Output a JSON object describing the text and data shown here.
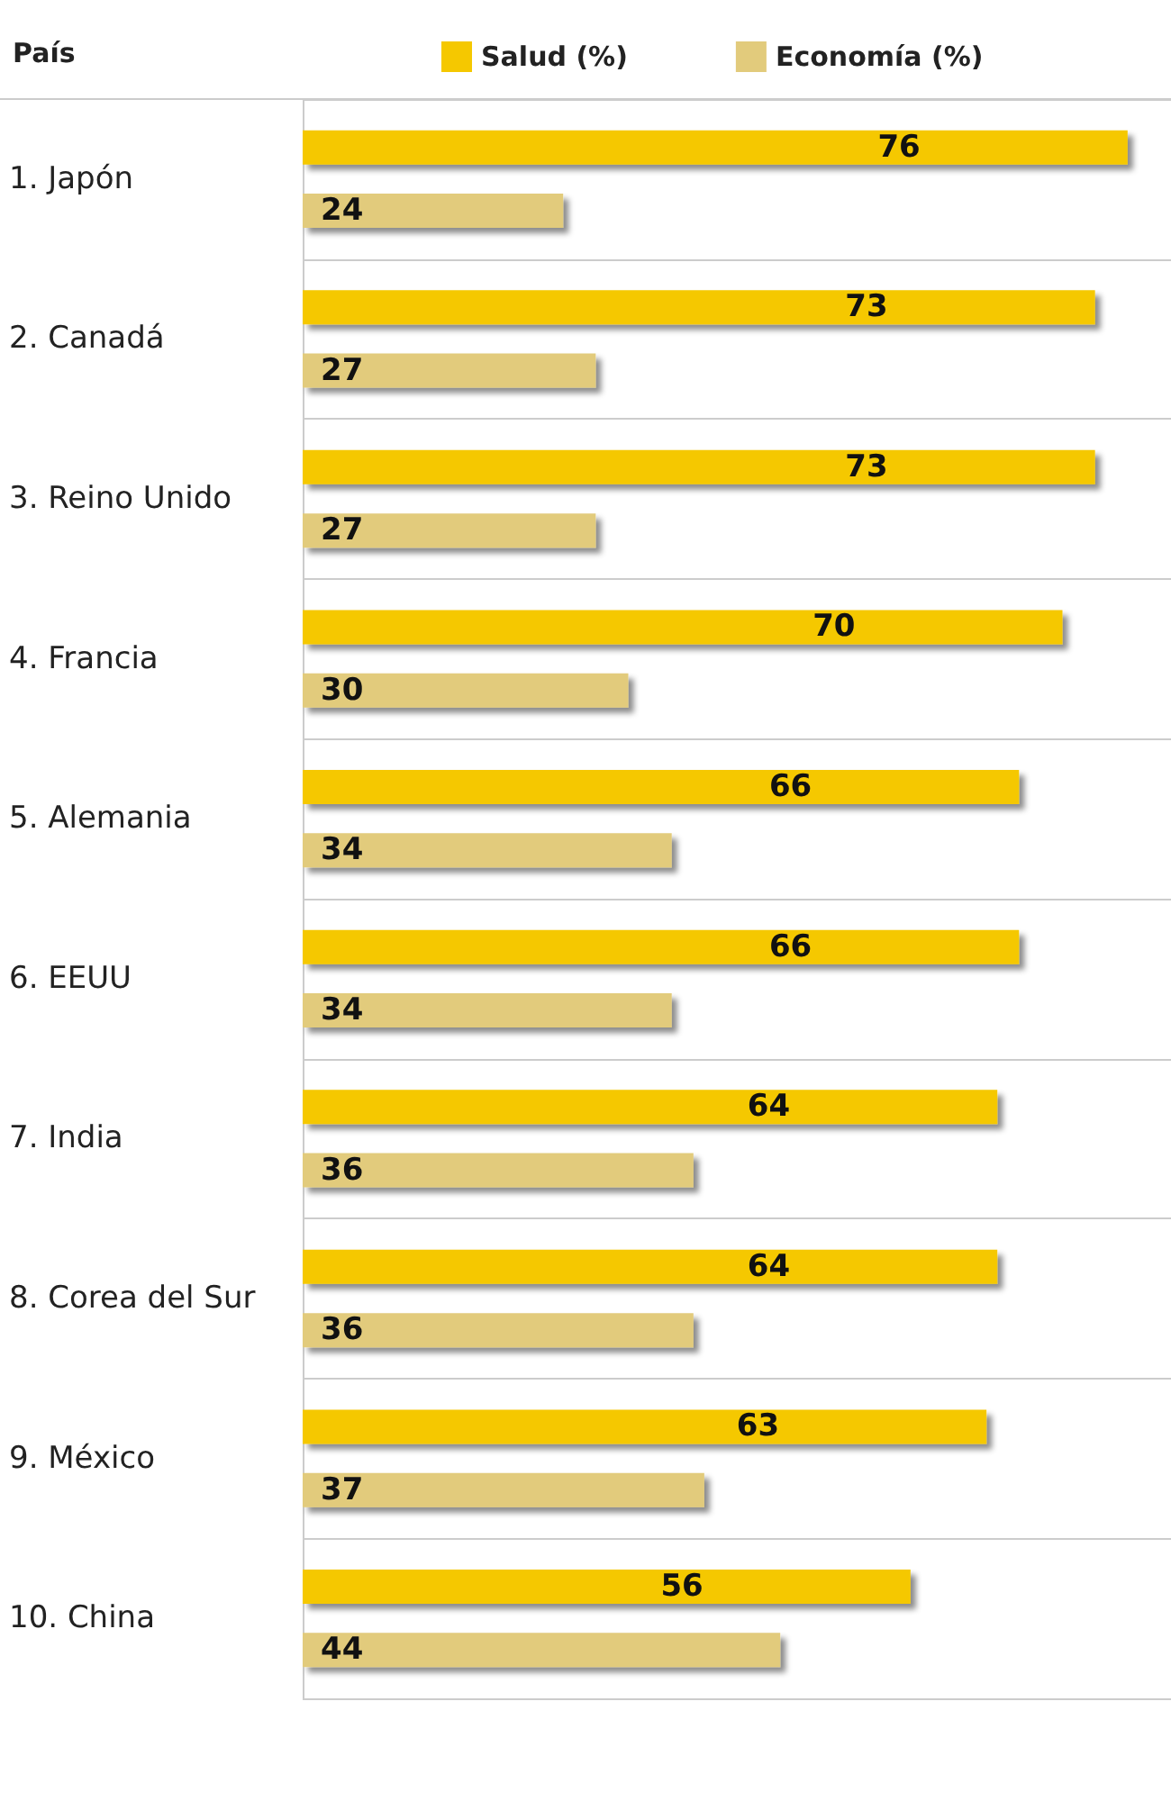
{
  "chart_data": {
    "type": "bar",
    "orientation": "horizontal",
    "ylabel": "País",
    "categories": [
      "1. Japón",
      "2. Canadá",
      "3. Reino Unido",
      "4. Francia",
      "5. Alemania",
      "6. EEUU",
      "7. India",
      "8. Corea del Sur",
      "9. México",
      "10. China"
    ],
    "series": [
      {
        "name": "Salud (%)",
        "color": "#f5c800",
        "values": [
          76,
          73,
          73,
          70,
          66,
          66,
          64,
          64,
          63,
          56
        ]
      },
      {
        "name": "Economía (%)",
        "color": "#e2cb7c",
        "values": [
          24,
          27,
          27,
          30,
          34,
          34,
          36,
          36,
          37,
          44
        ]
      }
    ],
    "xlim": [
      0,
      80
    ],
    "tick_labels": "y",
    "data_labels": true,
    "grid": "y",
    "legend": "top"
  }
}
